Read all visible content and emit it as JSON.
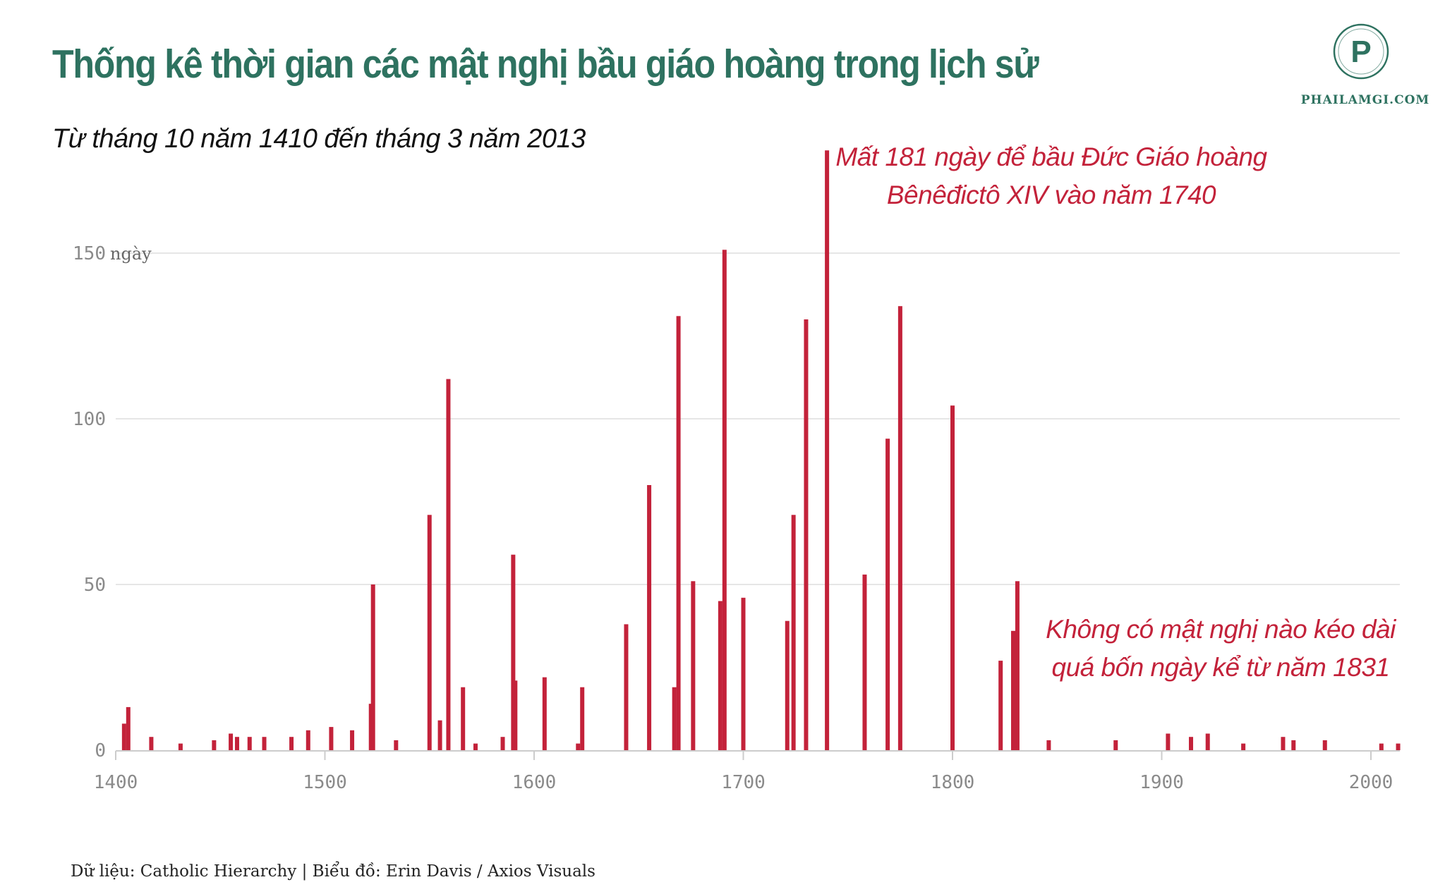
{
  "title": "Thống kê thời gian các mật nghị bầu giáo hoàng trong lịch sử",
  "subtitle": "Từ tháng 10 năm 1410 đến tháng 3 năm 2013",
  "logo": {
    "letter": "P",
    "text": "PHAILAMGI.COM",
    "color": "#2e7260"
  },
  "annotations": {
    "top": [
      "Mất 181 ngày để bầu Đức Giáo hoàng",
      "Bênêđictô XIV vào năm 1740"
    ],
    "bottom": [
      "Không có mật nghị nào kéo dài",
      "quá bốn ngày kể từ năm 1831"
    ]
  },
  "source": "Dữ liệu: Catholic Hierarchy | Biểu đồ: Erin Davis / Axios Visuals",
  "colors": {
    "bar": "#c3223a",
    "title": "#2e7260",
    "grid": "#e6e6e6",
    "axis": "#cccccc"
  },
  "chart_data": {
    "type": "bar",
    "xlim": [
      1400,
      2018
    ],
    "ylim": [
      0,
      181
    ],
    "x_ticks": [
      1400,
      1500,
      1600,
      1700,
      1800,
      1900,
      2000
    ],
    "y_ticks": [
      0,
      50,
      100,
      150
    ],
    "y_unit": "ngày",
    "grid": true,
    "points": [
      {
        "year": 1404,
        "days": 8
      },
      {
        "year": 1406,
        "days": 13
      },
      {
        "year": 1417,
        "days": 4
      },
      {
        "year": 1431,
        "days": 2
      },
      {
        "year": 1447,
        "days": 3
      },
      {
        "year": 1455,
        "days": 5
      },
      {
        "year": 1458,
        "days": 4
      },
      {
        "year": 1464,
        "days": 4
      },
      {
        "year": 1471,
        "days": 4
      },
      {
        "year": 1484,
        "days": 4
      },
      {
        "year": 1492,
        "days": 6
      },
      {
        "year": 1503,
        "days": 7
      },
      {
        "year": 1513,
        "days": 6
      },
      {
        "year": 1522,
        "days": 14
      },
      {
        "year": 1523,
        "days": 50
      },
      {
        "year": 1534,
        "days": 3
      },
      {
        "year": 1550,
        "days": 71
      },
      {
        "year": 1555,
        "days": 9
      },
      {
        "year": 1559,
        "days": 112
      },
      {
        "year": 1566,
        "days": 19
      },
      {
        "year": 1572,
        "days": 2
      },
      {
        "year": 1585,
        "days": 4
      },
      {
        "year": 1590,
        "days": 59
      },
      {
        "year": 1591,
        "days": 21
      },
      {
        "year": 1605,
        "days": 22
      },
      {
        "year": 1621,
        "days": 2
      },
      {
        "year": 1623,
        "days": 19
      },
      {
        "year": 1644,
        "days": 38
      },
      {
        "year": 1655,
        "days": 80
      },
      {
        "year": 1667,
        "days": 19
      },
      {
        "year": 1669,
        "days": 131
      },
      {
        "year": 1676,
        "days": 51
      },
      {
        "year": 1689,
        "days": 45
      },
      {
        "year": 1691,
        "days": 151
      },
      {
        "year": 1700,
        "days": 46
      },
      {
        "year": 1721,
        "days": 39
      },
      {
        "year": 1724,
        "days": 71
      },
      {
        "year": 1730,
        "days": 130
      },
      {
        "year": 1740,
        "days": 181
      },
      {
        "year": 1758,
        "days": 53
      },
      {
        "year": 1769,
        "days": 94
      },
      {
        "year": 1775,
        "days": 134
      },
      {
        "year": 1800,
        "days": 104
      },
      {
        "year": 1823,
        "days": 27
      },
      {
        "year": 1829,
        "days": 36
      },
      {
        "year": 1831,
        "days": 51
      },
      {
        "year": 1846,
        "days": 3
      },
      {
        "year": 1878,
        "days": 3
      },
      {
        "year": 1903,
        "days": 5
      },
      {
        "year": 1914,
        "days": 4
      },
      {
        "year": 1922,
        "days": 5
      },
      {
        "year": 1939,
        "days": 2
      },
      {
        "year": 1958,
        "days": 4
      },
      {
        "year": 1963,
        "days": 3
      },
      {
        "year": 1978,
        "days": 3
      },
      {
        "year": 2005,
        "days": 2
      },
      {
        "year": 2013,
        "days": 2
      }
    ]
  }
}
